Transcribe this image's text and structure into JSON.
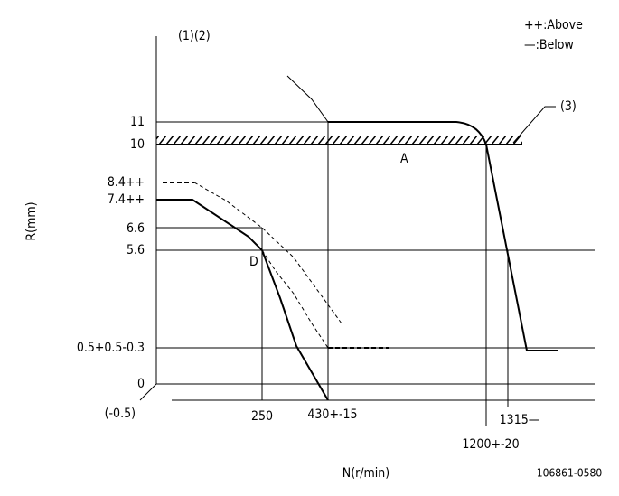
{
  "header": {
    "labels": "(1)(2)",
    "legend_above": "++:Above",
    "legend_below": "—:Below"
  },
  "axis": {
    "y_title": "R(mm)",
    "x_title": "N(r/min)",
    "y_labels": [
      "11",
      "10",
      "8.4++",
      "7.4++",
      "6.6",
      "5.6",
      "0.5+0.5-0.3",
      "0",
      "(-0.5)"
    ],
    "x_labels": [
      "250",
      "430+-15",
      "1200+-20",
      "1315—"
    ]
  },
  "markers": {
    "a": "A",
    "d": "D",
    "note": "(3)"
  },
  "code": "106861-0580"
}
